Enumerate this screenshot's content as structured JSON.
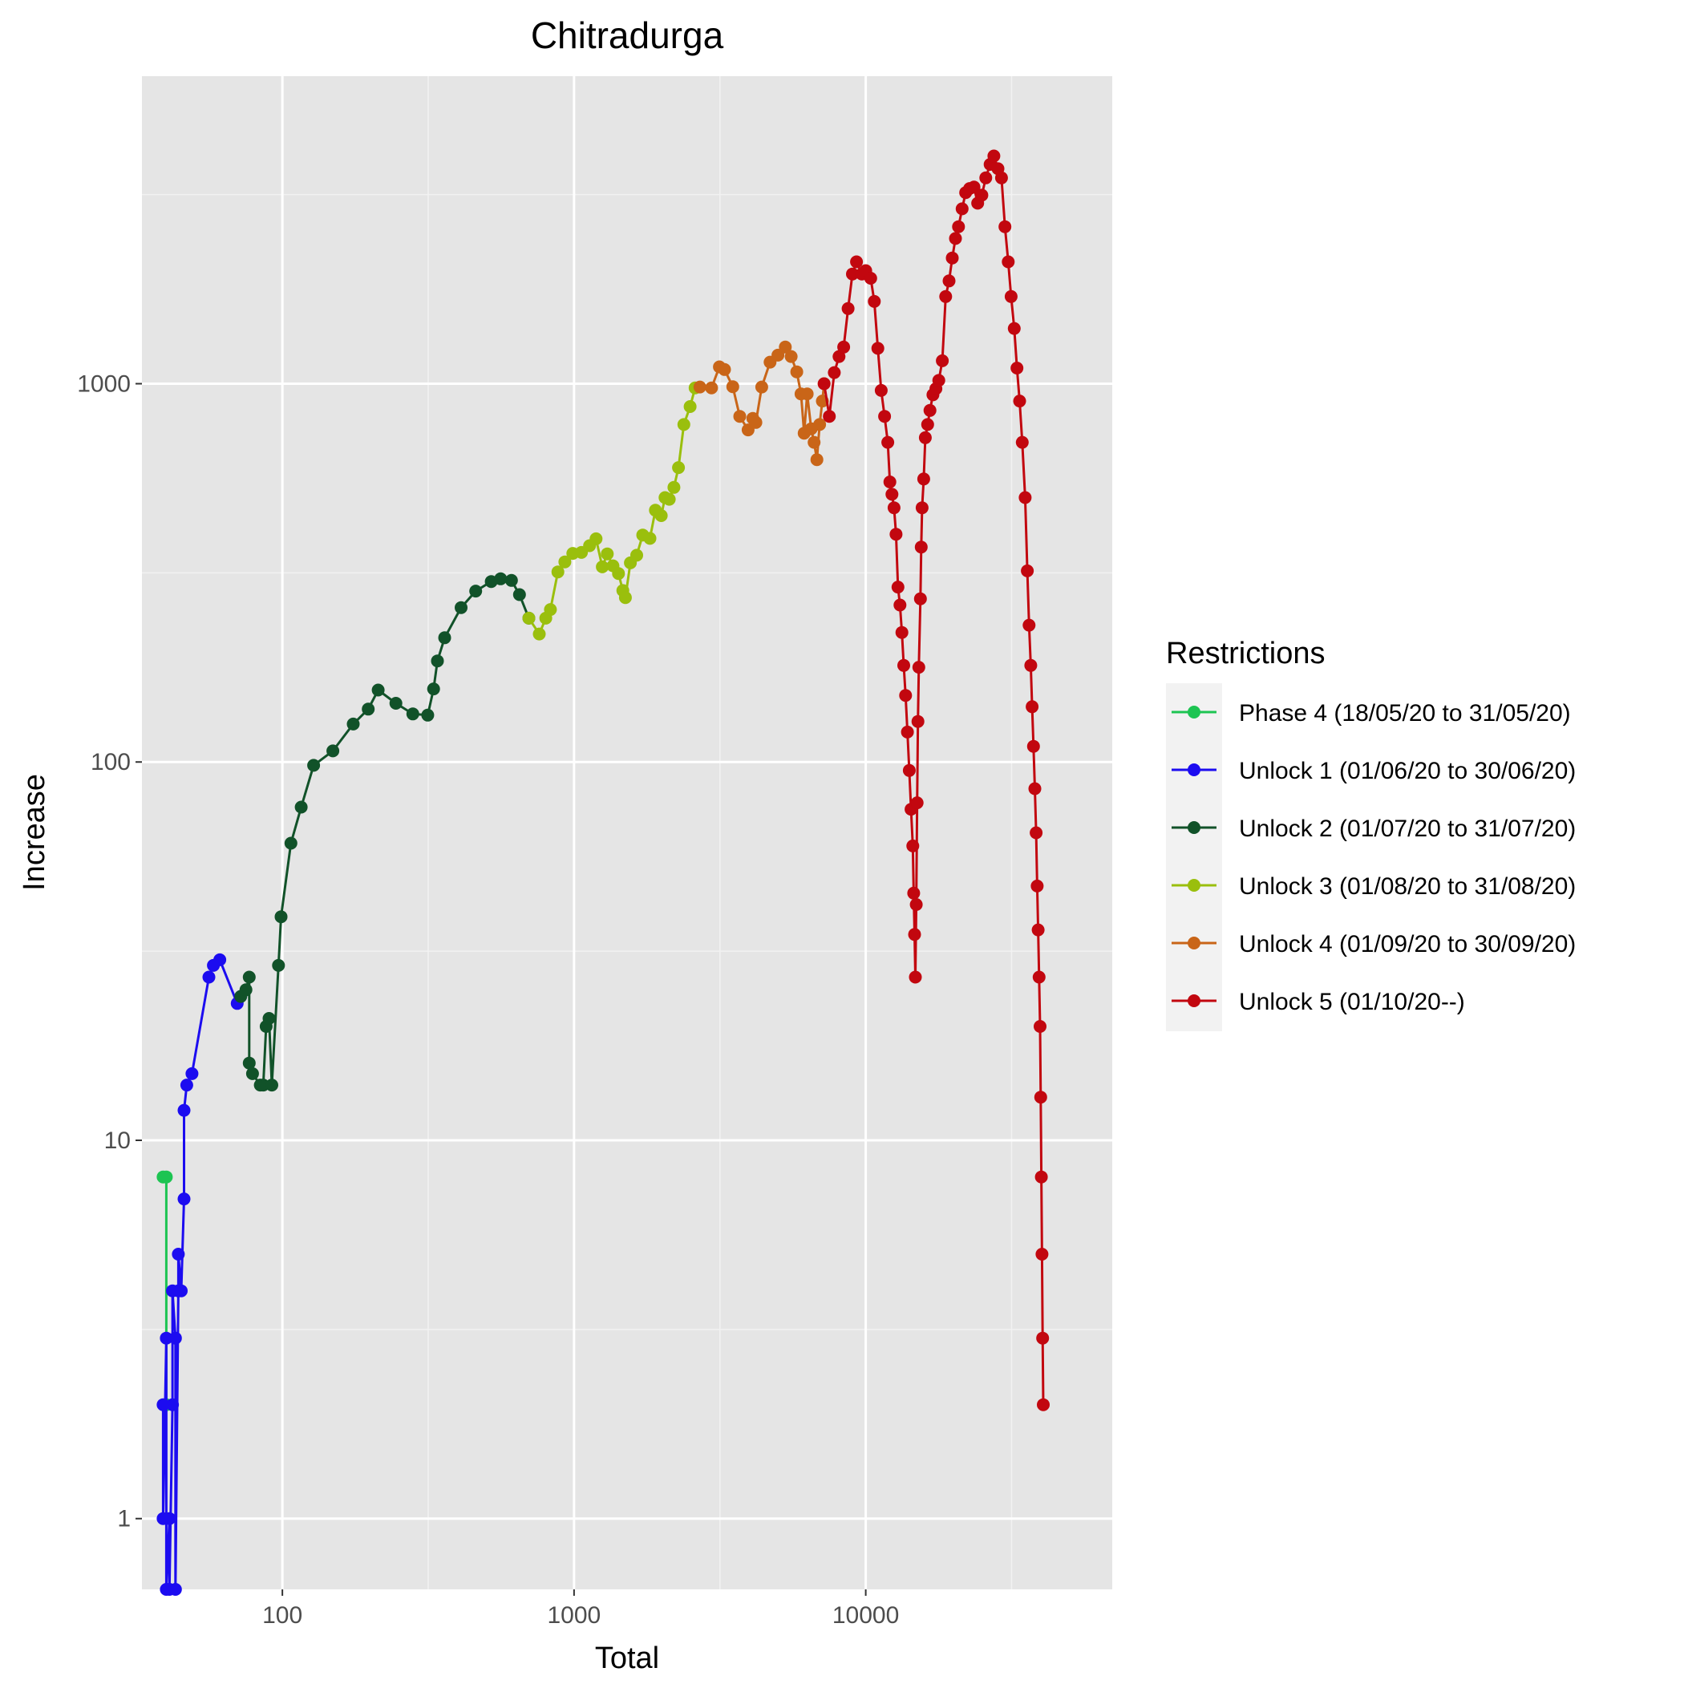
{
  "chart_data": {
    "type": "line",
    "title": "Chitradurga",
    "xlabel": "Total",
    "ylabel": "Increase",
    "x_scale": "log10",
    "y_scale": "log10",
    "xlim": [
      33,
      70000
    ],
    "ylim": [
      0.65,
      6500
    ],
    "x_ticks": [
      100,
      1000,
      10000
    ],
    "x_tick_labels": [
      "100",
      "1000",
      "10000"
    ],
    "y_ticks": [
      1,
      10,
      100,
      1000
    ],
    "y_tick_labels": [
      "1",
      "10",
      "100",
      "1000"
    ],
    "grid": true,
    "legend": {
      "title": "Restrictions",
      "position": "right"
    },
    "series": [
      {
        "name": "Phase 4 (18/05/20 to 31/05/20)",
        "color": "#1DC452",
        "points": [
          [
            39,
            8
          ],
          [
            40,
            8
          ],
          [
            40,
            2
          ]
        ]
      },
      {
        "name": "Unlock 1 (01/06/20 to 30/06/20)",
        "color": "#1C0CF0",
        "points": [
          [
            39,
            2
          ],
          [
            39,
            1
          ],
          [
            40,
            3
          ],
          [
            40,
            0.65
          ],
          [
            41,
            1
          ],
          [
            41,
            0.65
          ],
          [
            42,
            2
          ],
          [
            42,
            4
          ],
          [
            43,
            3
          ],
          [
            43,
            0.65
          ],
          [
            44,
            4
          ],
          [
            44,
            5
          ],
          [
            45,
            4
          ],
          [
            46,
            7
          ],
          [
            46,
            12
          ],
          [
            47,
            14
          ],
          [
            49,
            15
          ],
          [
            56,
            27
          ],
          [
            58,
            29
          ],
          [
            61,
            30
          ],
          [
            70,
            23
          ],
          [
            72,
            24
          ]
        ]
      },
      {
        "name": "Unlock 2 (01/07/20 to 31/07/20)",
        "color": "#115229",
        "points": [
          [
            72,
            24
          ],
          [
            75,
            25
          ],
          [
            77,
            27
          ],
          [
            77,
            16
          ],
          [
            79,
            15
          ],
          [
            84,
            14
          ],
          [
            86,
            14
          ],
          [
            88,
            20
          ],
          [
            90,
            21
          ],
          [
            92,
            14
          ],
          [
            97,
            29
          ],
          [
            99,
            39
          ],
          [
            107,
            61
          ],
          [
            116,
            76
          ],
          [
            128,
            98
          ],
          [
            149,
            107
          ],
          [
            175,
            126
          ],
          [
            197,
            138
          ],
          [
            213,
            155
          ],
          [
            245,
            143
          ],
          [
            280,
            134
          ],
          [
            315,
            133
          ],
          [
            330,
            156
          ],
          [
            340,
            185
          ],
          [
            360,
            213
          ],
          [
            410,
            256
          ],
          [
            460,
            283
          ],
          [
            520,
            300
          ],
          [
            560,
            305
          ],
          [
            610,
            302
          ],
          [
            650,
            277
          ],
          [
            700,
            240
          ]
        ]
      },
      {
        "name": "Unlock 3 (01/08/20 to 31/08/20)",
        "color": "#9ABF0D",
        "points": [
          [
            700,
            240
          ],
          [
            760,
            218
          ],
          [
            800,
            240
          ],
          [
            830,
            253
          ],
          [
            880,
            318
          ],
          [
            930,
            338
          ],
          [
            990,
            356
          ],
          [
            1060,
            358
          ],
          [
            1130,
            373
          ],
          [
            1190,
            389
          ],
          [
            1250,
            328
          ],
          [
            1300,
            355
          ],
          [
            1360,
            330
          ],
          [
            1420,
            315
          ],
          [
            1470,
            284
          ],
          [
            1500,
            272
          ],
          [
            1560,
            336
          ],
          [
            1640,
            352
          ],
          [
            1720,
            398
          ],
          [
            1820,
            390
          ],
          [
            1900,
            463
          ],
          [
            1990,
            448
          ],
          [
            2050,
            500
          ],
          [
            2120,
            495
          ],
          [
            2200,
            532
          ],
          [
            2280,
            600
          ],
          [
            2380,
            780
          ],
          [
            2500,
            870
          ],
          [
            2600,
            975
          ]
        ]
      },
      {
        "name": "Unlock 4 (01/09/20 to 30/09/20)",
        "color": "#C96518",
        "points": [
          [
            2700,
            980
          ],
          [
            2960,
            975
          ],
          [
            3150,
            1108
          ],
          [
            3280,
            1090
          ],
          [
            3500,
            982
          ],
          [
            3700,
            820
          ],
          [
            3950,
            755
          ],
          [
            4100,
            810
          ],
          [
            4200,
            790
          ],
          [
            4400,
            980
          ],
          [
            4700,
            1140
          ],
          [
            5000,
            1190
          ],
          [
            5300,
            1250
          ],
          [
            5550,
            1180
          ],
          [
            5800,
            1075
          ],
          [
            6000,
            940
          ],
          [
            6150,
            740
          ],
          [
            6300,
            940
          ],
          [
            6500,
            760
          ],
          [
            6650,
            700
          ],
          [
            6800,
            630
          ],
          [
            6950,
            780
          ],
          [
            7100,
            900
          ],
          [
            7200,
            1000
          ]
        ]
      },
      {
        "name": "Unlock 5 (01/10/20--)",
        "color": "#C2070F",
        "points": [
          [
            7200,
            1000
          ],
          [
            7500,
            820
          ],
          [
            7800,
            1070
          ],
          [
            8100,
            1180
          ],
          [
            8400,
            1250
          ],
          [
            8700,
            1580
          ],
          [
            9000,
            1950
          ],
          [
            9300,
            2100
          ],
          [
            9700,
            1950
          ],
          [
            10000,
            1990
          ],
          [
            10400,
            1900
          ],
          [
            10700,
            1650
          ],
          [
            11000,
            1240
          ],
          [
            11300,
            960
          ],
          [
            11600,
            820
          ],
          [
            11900,
            700
          ],
          [
            12100,
            550
          ],
          [
            12300,
            510
          ],
          [
            12500,
            470
          ],
          [
            12700,
            400
          ],
          [
            12900,
            290
          ],
          [
            13100,
            260
          ],
          [
            13300,
            220
          ],
          [
            13500,
            180
          ],
          [
            13700,
            150
          ],
          [
            13900,
            120
          ],
          [
            14100,
            95
          ],
          [
            14300,
            75
          ],
          [
            14500,
            60
          ],
          [
            14600,
            45
          ],
          [
            14700,
            35
          ],
          [
            14800,
            27
          ],
          [
            14900,
            42
          ],
          [
            15000,
            78
          ],
          [
            15100,
            128
          ],
          [
            15200,
            178
          ],
          [
            15400,
            270
          ],
          [
            15500,
            370
          ],
          [
            15600,
            470
          ],
          [
            15800,
            560
          ],
          [
            16000,
            720
          ],
          [
            16300,
            780
          ],
          [
            16600,
            850
          ],
          [
            17000,
            935
          ],
          [
            17400,
            970
          ],
          [
            17800,
            1020
          ],
          [
            18300,
            1150
          ],
          [
            18800,
            1700
          ],
          [
            19300,
            1870
          ],
          [
            19800,
            2150
          ],
          [
            20300,
            2420
          ],
          [
            20800,
            2600
          ],
          [
            21400,
            2900
          ],
          [
            22000,
            3200
          ],
          [
            22700,
            3280
          ],
          [
            23500,
            3310
          ],
          [
            24200,
            3000
          ],
          [
            25000,
            3150
          ],
          [
            25800,
            3500
          ],
          [
            26700,
            3800
          ],
          [
            27500,
            4000
          ],
          [
            28400,
            3700
          ],
          [
            29200,
            3500
          ],
          [
            30000,
            2600
          ],
          [
            30800,
            2100
          ],
          [
            31500,
            1700
          ],
          [
            32300,
            1400
          ],
          [
            33000,
            1100
          ],
          [
            33700,
            900
          ],
          [
            34400,
            700
          ],
          [
            35200,
            500
          ],
          [
            35800,
            320
          ],
          [
            36300,
            230
          ],
          [
            36800,
            180
          ],
          [
            37200,
            140
          ],
          [
            37600,
            110
          ],
          [
            38000,
            85
          ],
          [
            38400,
            65
          ],
          [
            38700,
            47
          ],
          [
            39000,
            36
          ],
          [
            39300,
            27
          ],
          [
            39600,
            20
          ],
          [
            39800,
            13
          ],
          [
            40000,
            8
          ],
          [
            40200,
            5
          ],
          [
            40400,
            3
          ],
          [
            40600,
            2
          ]
        ]
      }
    ]
  }
}
